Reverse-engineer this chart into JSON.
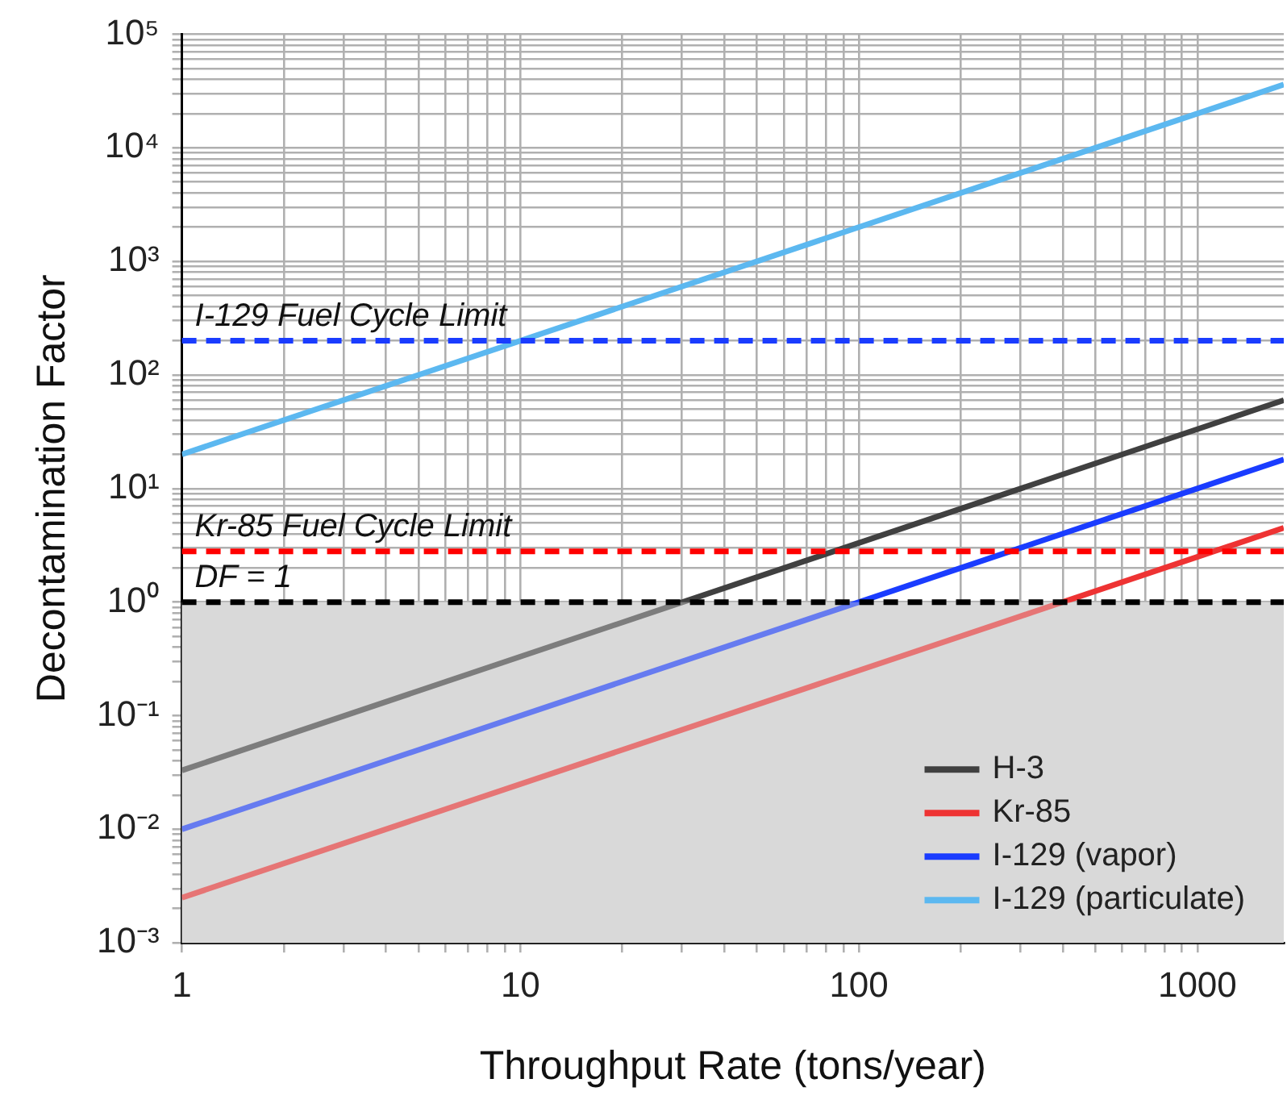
{
  "chart_data": {
    "type": "line",
    "xlabel": "Throughput Rate (tons/year)",
    "ylabel": "Decontamination Factor",
    "log": "xy",
    "grid": true,
    "legend": "bottom right",
    "line_style": "solid",
    "marker": "none",
    "xlim": [
      1,
      1800
    ],
    "xticks": [
      1,
      10,
      100,
      1000
    ],
    "ylim": [
      0.001,
      100000
    ],
    "yticks": [
      {
        "value": 0.001,
        "label": "10⁻³"
      },
      {
        "value": 0.01,
        "label": "10⁻²"
      },
      {
        "value": 0.1,
        "label": "10⁻¹"
      },
      {
        "value": 1,
        "label": "10⁰"
      },
      {
        "value": 10,
        "label": "10¹"
      },
      {
        "value": 100,
        "label": "10²"
      },
      {
        "value": 1000,
        "label": "10³"
      },
      {
        "value": 10000,
        "label": "10⁴"
      },
      {
        "value": 100000,
        "label": "10⁵"
      }
    ],
    "x": [
      1,
      1800
    ],
    "series": [
      {
        "name": "H-3",
        "color": "#404040",
        "values": [
          0.033,
          60
        ]
      },
      {
        "name": "Kr-85",
        "color": "#ee3333",
        "values": [
          0.0025,
          4.5
        ]
      },
      {
        "name": "I-129 (vapor)",
        "color": "#1a3cff",
        "values": [
          0.01,
          18
        ]
      },
      {
        "name": "I-129 (particulate)",
        "color": "#5cb8f0",
        "values": [
          20,
          36000
        ]
      }
    ],
    "ref_lines": [
      {
        "axis": "y",
        "value": 200,
        "label": "I-129 Fuel Cycle Limit",
        "color": "#1a3cff",
        "line_style": "dashed"
      },
      {
        "axis": "y",
        "value": 2.8,
        "label": "Kr-85 Fuel Cycle Limit",
        "color": "#ff0000",
        "line_style": "dashed"
      },
      {
        "axis": "y",
        "value": 1,
        "label": "DF = 1",
        "color": "#000000",
        "line_style": "dashed"
      }
    ],
    "bands": [
      {
        "axis": "y",
        "from": 0.001,
        "to": 1,
        "color": "#d9d9d9"
      }
    ]
  }
}
